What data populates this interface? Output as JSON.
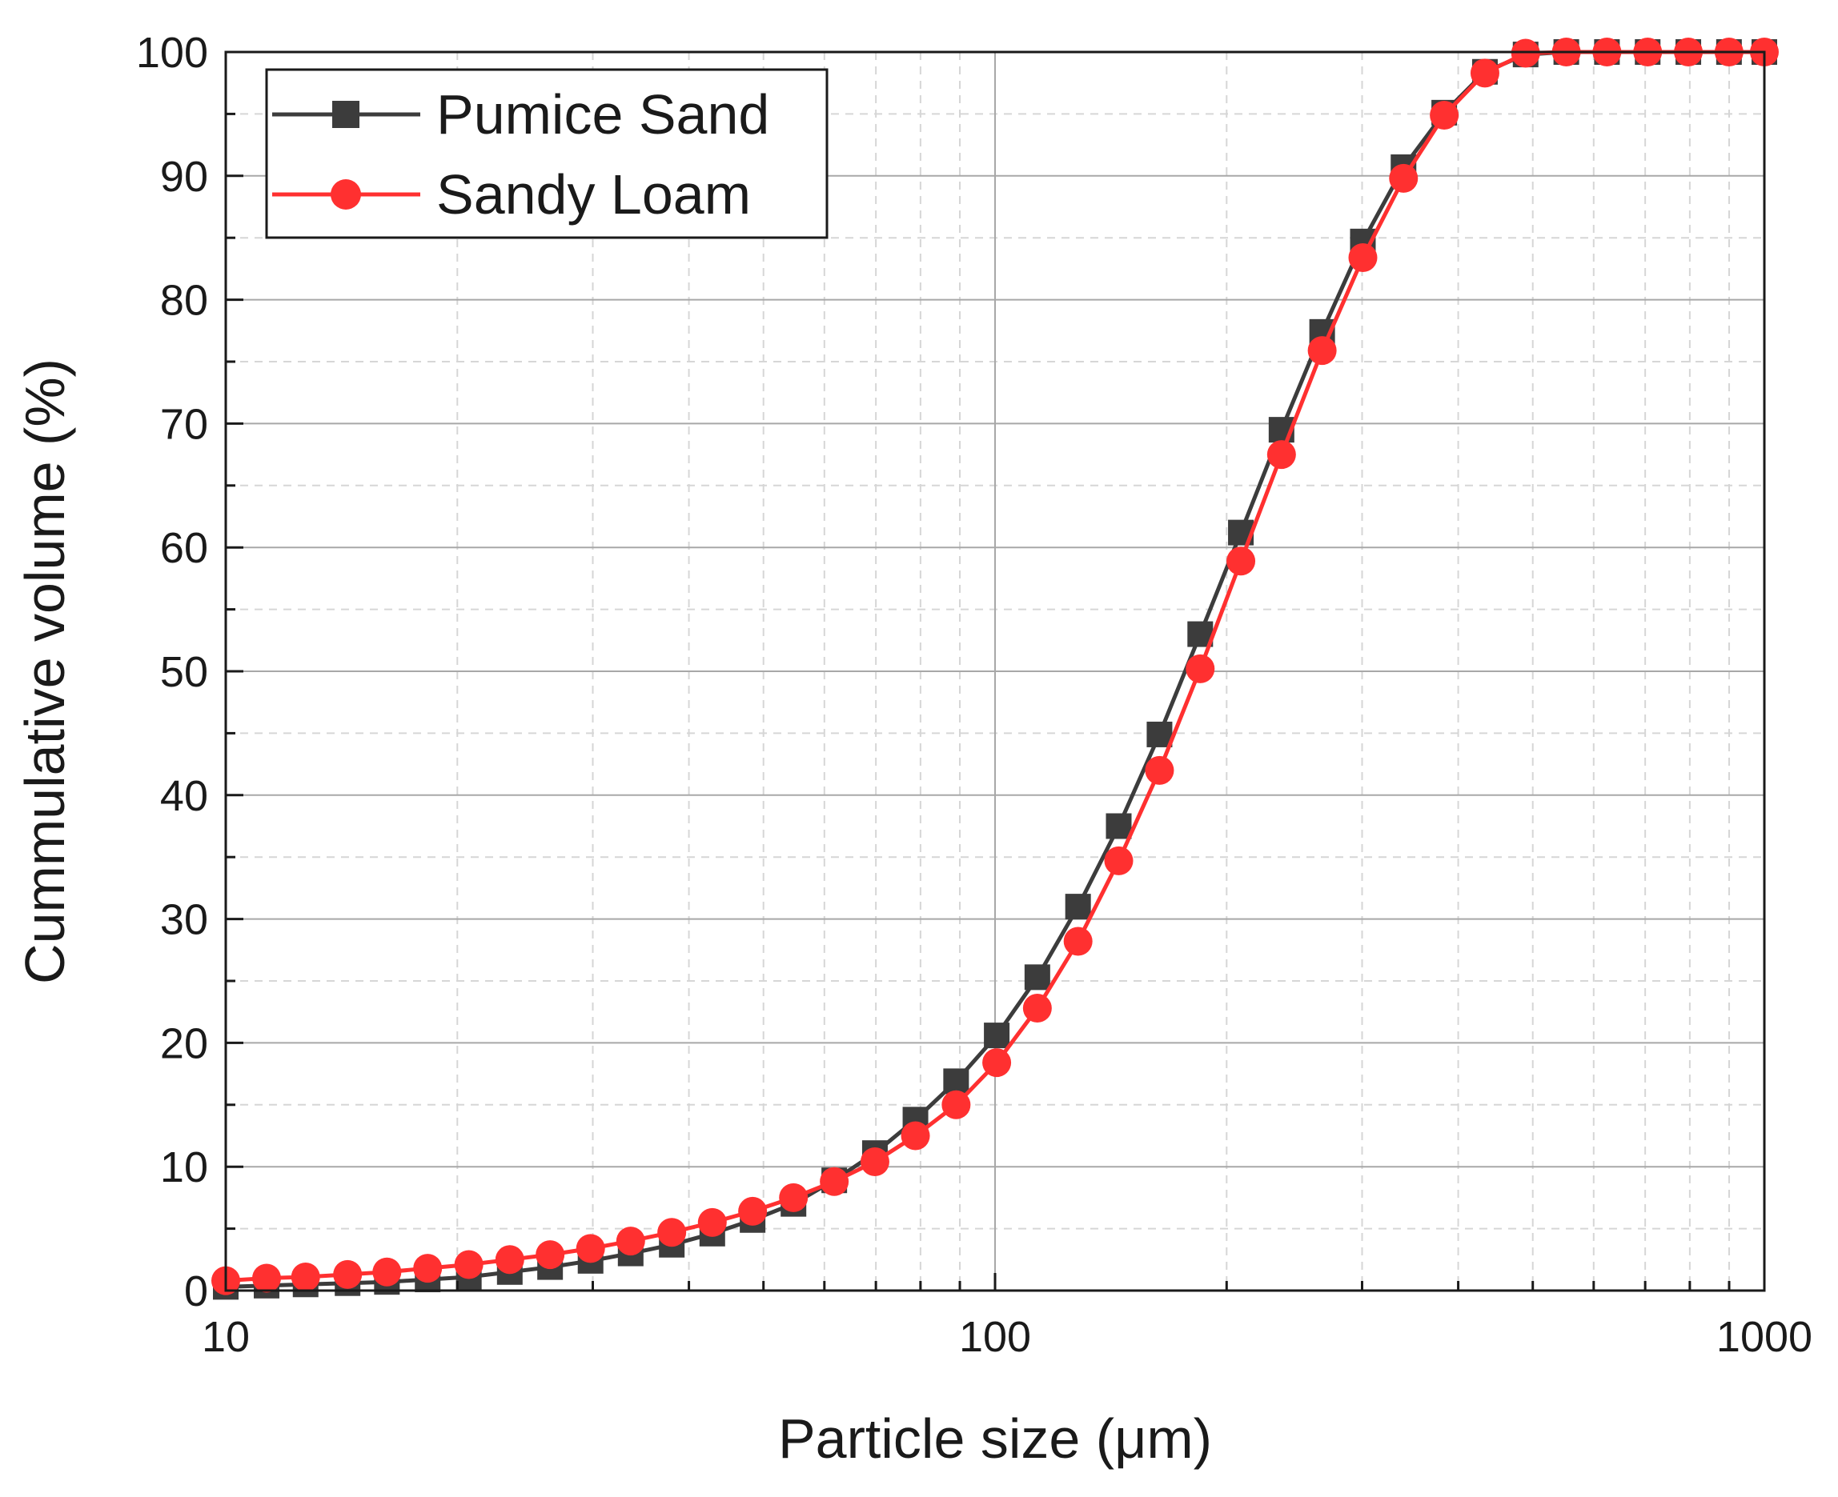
{
  "chart_data": {
    "type": "line",
    "title": "",
    "xlabel": "Particle size (μm)",
    "ylabel": "Cummulative volume (%)",
    "xscale": "log",
    "xlim": [
      10,
      1000
    ],
    "ylim": [
      0,
      100
    ],
    "x_ticks": [
      "10",
      "100",
      "1000"
    ],
    "y_ticks": [
      "0",
      "10",
      "20",
      "30",
      "40",
      "50",
      "60",
      "70",
      "80",
      "90",
      "100"
    ],
    "grid": true,
    "legend_position": "top-left",
    "x": [
      10,
      11.3,
      12.7,
      14.4,
      16.2,
      18.3,
      20.7,
      23.4,
      26.4,
      29.8,
      33.6,
      38,
      42.9,
      48.4,
      54.7,
      61.8,
      69.8,
      78.8,
      89,
      100.5,
      113.5,
      128.2,
      144.8,
      163.6,
      184.8,
      208.7,
      235.7,
      266.2,
      300.7,
      339.6,
      383.6,
      433.3,
      489.4,
      552.8,
      624.3,
      705.2,
      796.5,
      899.6,
      1000
    ],
    "series": [
      {
        "name": "Pumice Sand",
        "color": "#3c3c3c",
        "marker": "square",
        "values": [
          0.3,
          0.4,
          0.5,
          0.6,
          0.7,
          0.9,
          1.1,
          1.5,
          1.9,
          2.4,
          3.0,
          3.7,
          4.6,
          5.7,
          7.0,
          8.9,
          11.1,
          13.8,
          16.9,
          20.6,
          25.3,
          31.0,
          37.5,
          44.9,
          53.0,
          61.2,
          69.5,
          77.4,
          84.7,
          90.7,
          95.1,
          98.4,
          99.8,
          100,
          100,
          100,
          100,
          100,
          100
        ]
      },
      {
        "name": "Sandy Loam",
        "color": "#ff3030",
        "marker": "circle",
        "values": [
          0.8,
          1.0,
          1.1,
          1.3,
          1.5,
          1.8,
          2.1,
          2.5,
          2.9,
          3.4,
          4.0,
          4.7,
          5.5,
          6.4,
          7.5,
          8.8,
          10.4,
          12.5,
          15.0,
          18.4,
          22.8,
          28.2,
          34.7,
          42.0,
          50.2,
          58.9,
          67.5,
          75.9,
          83.4,
          89.8,
          94.9,
          98.3,
          99.9,
          100,
          100,
          100,
          100,
          100,
          100
        ]
      }
    ]
  }
}
